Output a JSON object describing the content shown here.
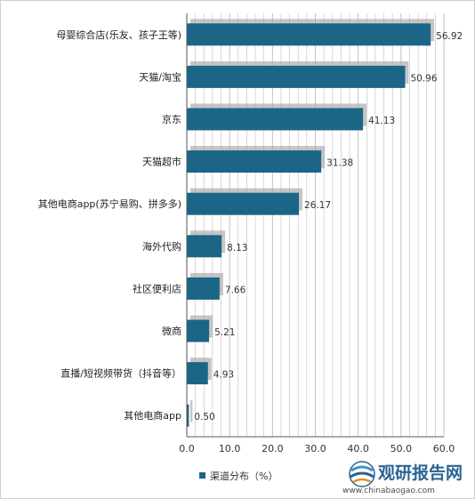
{
  "chart_data": {
    "type": "bar",
    "orientation": "horizontal",
    "categories": [
      "母婴综合店(乐友、孩子王等)",
      "天猫/淘宝",
      "京东",
      "天猫超市",
      "其他电商app(苏宁易购、拼多多)",
      "海外代购",
      "社区便利店",
      "微商",
      "直播/短视频带货（抖音等）",
      "其他电商app"
    ],
    "series": [
      {
        "name": "渠道分布（%）",
        "values": [
          56.92,
          50.96,
          41.13,
          31.38,
          26.17,
          8.13,
          7.66,
          5.21,
          4.93,
          0.5
        ],
        "value_labels": [
          "56.92",
          "50.96",
          "41.13",
          "31.38",
          "26.17",
          "8.13",
          "7.66",
          "5.21",
          "4.93",
          "0.50"
        ],
        "color": "#1b6687"
      }
    ],
    "xlim": [
      0,
      60
    ],
    "x_ticks": [
      "0.0",
      "10.0",
      "20.0",
      "30.0",
      "40.0",
      "50.0",
      "60.0"
    ],
    "title": "",
    "xlabel": "",
    "ylabel": "",
    "grid": "vertical",
    "legend_position": "bottom"
  },
  "colors": {
    "bar": "#1b6687",
    "shadow": "#a8a8a8",
    "grid": "#bdbdbd",
    "axis": "#555555"
  },
  "watermark": {
    "brand": "观研报告网",
    "url": "www.chinabaogao.com",
    "logo_icon": "sphere-logo-icon"
  }
}
